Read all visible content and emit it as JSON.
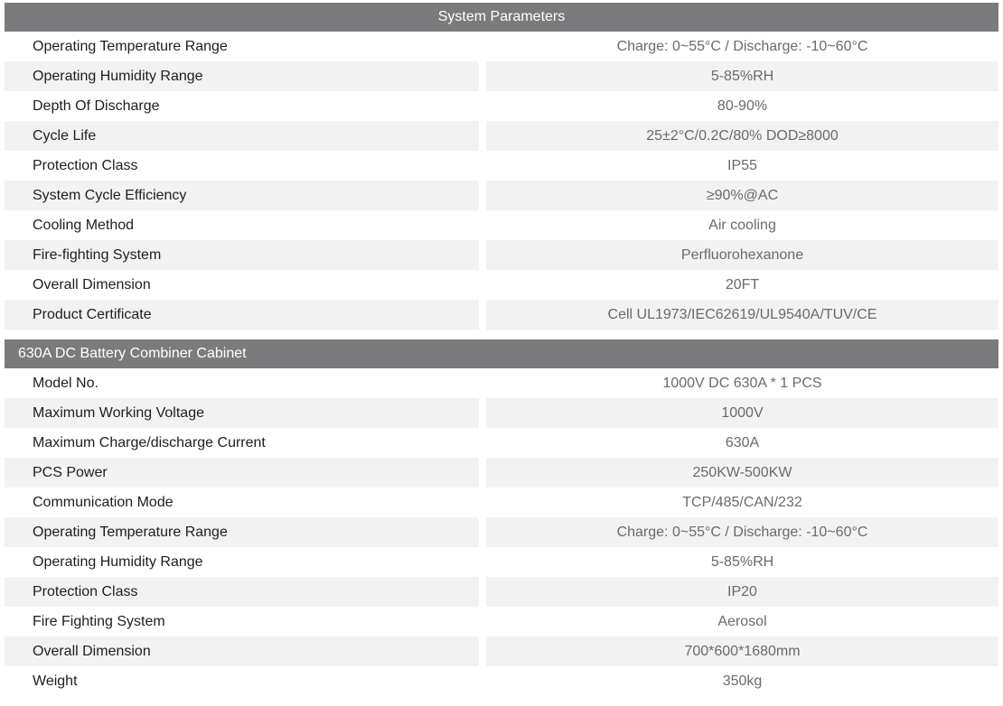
{
  "colors": {
    "header_bg": "#7b7b7d",
    "alt_row_bg": "#f2f2f2"
  },
  "sections": [
    {
      "title": "System Parameters",
      "rows": [
        {
          "label": "Operating Temperature Range",
          "value": "Charge: 0~55°C / Discharge: -10~60°C"
        },
        {
          "label": "Operating Humidity Range",
          "value": "5-85%RH"
        },
        {
          "label": "Depth Of Discharge",
          "value": "80-90%"
        },
        {
          "label": "Cycle Life",
          "value": "25±2°C/0.2C/80% DOD≥8000"
        },
        {
          "label": "Protection Class",
          "value": "IP55"
        },
        {
          "label": "System Cycle Efficiency",
          "value": "≥90%@AC"
        },
        {
          "label": "Cooling Method",
          "value": "Air cooling"
        },
        {
          "label": "Fire-fighting System",
          "value": "Perfluorohexanone"
        },
        {
          "label": "Overall Dimension",
          "value": "20FT"
        },
        {
          "label": "Product Certificate",
          "value": "Cell UL1973/IEC62619/UL9540A/TUV/CE"
        }
      ]
    },
    {
      "title": "630A DC Battery Combiner Cabinet",
      "rows": [
        {
          "label": "Model No.",
          "value": "1000V DC 630A * 1 PCS"
        },
        {
          "label": "Maximum Working Voltage",
          "value": "1000V"
        },
        {
          "label": "Maximum Charge/discharge Current",
          "value": "630A"
        },
        {
          "label": "PCS Power",
          "value": "250KW-500KW"
        },
        {
          "label": "Communication Mode",
          "value": "TCP/485/CAN/232"
        },
        {
          "label": "Operating Temperature Range",
          "value": "Charge: 0~55°C / Discharge: -10~60°C"
        },
        {
          "label": "Operating Humidity Range",
          "value": "5-85%RH"
        },
        {
          "label": "Protection Class",
          "value": "IP20"
        },
        {
          "label": "Fire Fighting System",
          "value": "Aerosol"
        },
        {
          "label": "Overall Dimension",
          "value": "700*600*1680mm"
        },
        {
          "label": "Weight",
          "value": "350kg"
        }
      ]
    }
  ]
}
